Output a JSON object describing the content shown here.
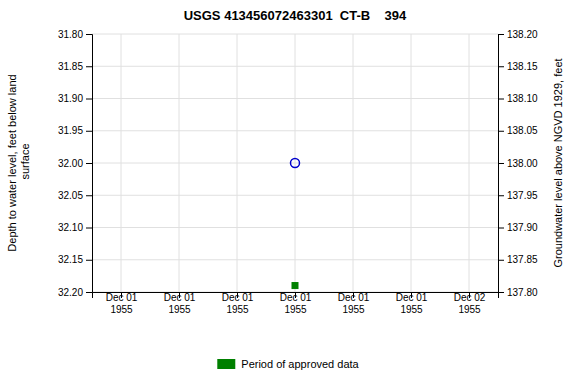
{
  "chart_data": {
    "type": "scatter",
    "title": "USGS 413456072463301  CT-B    394",
    "y_label": "Depth to water level, feet below land\n surface",
    "y2_label": "Groundwater level above NGVD 1929, feet",
    "categories": [
      "Dec 01\n1955",
      "Dec 01\n1955",
      "Dec 01\n1955",
      "Dec 01\n1955",
      "Dec 01\n1955",
      "Dec 01\n1955",
      "Dec 02\n1955"
    ],
    "series": [
      {
        "color": "#0000cc",
        "marker": "open-circle",
        "values": [
          null,
          null,
          null,
          32.0,
          null,
          null,
          null
        ]
      },
      {
        "name": "Period of approved data",
        "color": "#008000",
        "marker": "square",
        "values": [
          null,
          null,
          null,
          32.19,
          null,
          null,
          null
        ]
      }
    ],
    "ylim": [
      32.2,
      31.8
    ],
    "yticks": [
      {
        "value": 31.8,
        "label": "31.80"
      },
      {
        "value": 31.85,
        "label": "31.85"
      },
      {
        "value": 31.9,
        "label": "31.90"
      },
      {
        "value": 31.95,
        "label": "31.95"
      },
      {
        "value": 32.0,
        "label": "32.00"
      },
      {
        "value": 32.05,
        "label": "32.05"
      },
      {
        "value": 32.1,
        "label": "32.10"
      },
      {
        "value": 32.15,
        "label": "32.15"
      },
      {
        "value": 32.2,
        "label": "32.20"
      }
    ],
    "y2lim": [
      137.8,
      138.2
    ],
    "y2ticks": [
      {
        "value": 138.2,
        "label": "138.20"
      },
      {
        "value": 138.15,
        "label": "138.15"
      },
      {
        "value": 138.1,
        "label": "138.10"
      },
      {
        "value": 138.05,
        "label": "138.05"
      },
      {
        "value": 138.0,
        "label": "138.00"
      },
      {
        "value": 137.95,
        "label": "137.95"
      },
      {
        "value": 137.9,
        "label": "137.90"
      },
      {
        "value": 137.85,
        "label": "137.85"
      },
      {
        "value": 137.8,
        "label": "137.80"
      }
    ],
    "grid": true,
    "legend": "bottom"
  }
}
